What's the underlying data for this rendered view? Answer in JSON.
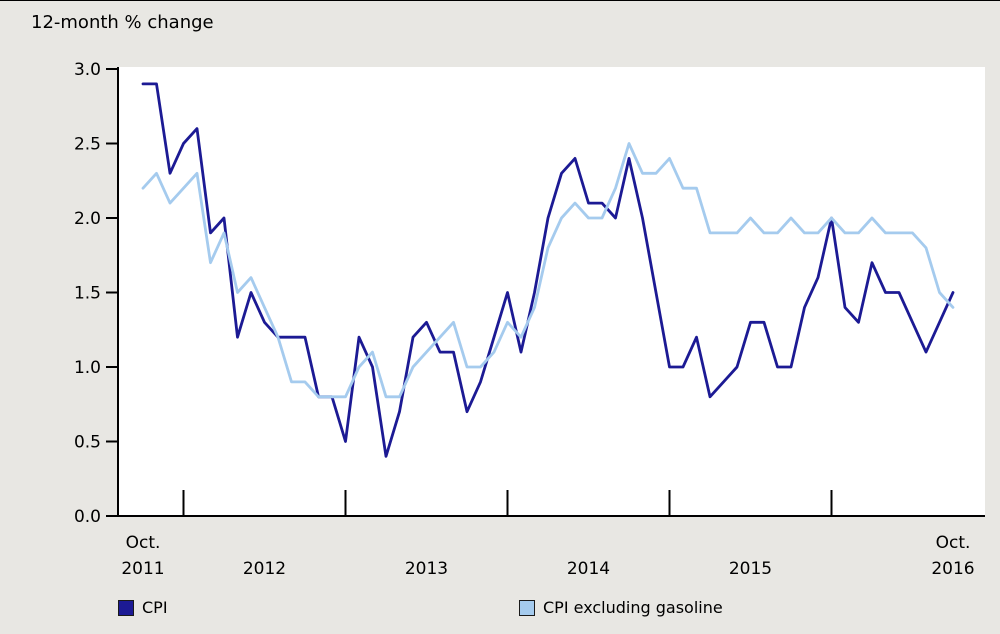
{
  "colors": {
    "background": "#e8e7e3",
    "plot_bg": "#ffffff",
    "axis": "#000000",
    "cpi": "#1c1a94",
    "cpi_ex": "#a5cbee"
  },
  "legend": [
    {
      "label": "CPI",
      "color_key": "cpi"
    },
    {
      "label": "CPI excluding gasoline",
      "color_key": "cpi_ex"
    }
  ],
  "chart_data": {
    "type": "line",
    "title": "12-month % change",
    "xlabel": "",
    "ylabel": "12-month % change",
    "ylim": [
      0.0,
      3.0
    ],
    "yticks": [
      0.0,
      0.5,
      1.0,
      1.5,
      2.0,
      2.5,
      3.0
    ],
    "grid": "off",
    "legend_position": "bottom",
    "x_unit": "month",
    "x_range": "Oct. 2011 to Oct. 2016",
    "x_axis": {
      "start_label": [
        "Oct.",
        "2011"
      ],
      "end_label": [
        "Oct.",
        "2016"
      ],
      "mid_year_labels": [
        "2012",
        "2013",
        "2014",
        "2015"
      ],
      "tick_indices": [
        3,
        15,
        27,
        39,
        51
      ],
      "mid_label_indices": [
        9,
        21,
        33,
        45
      ]
    },
    "series": [
      {
        "name": "CPI",
        "color_key": "cpi",
        "values": [
          2.9,
          2.9,
          2.3,
          2.5,
          2.6,
          1.9,
          2.0,
          1.2,
          1.5,
          1.3,
          1.2,
          1.2,
          1.2,
          0.8,
          0.8,
          0.5,
          1.2,
          1.0,
          0.4,
          0.7,
          1.2,
          1.3,
          1.1,
          1.1,
          0.7,
          0.9,
          1.2,
          1.5,
          1.1,
          1.5,
          2.0,
          2.3,
          2.4,
          2.1,
          2.1,
          2.0,
          2.4,
          2.0,
          1.5,
          1.0,
          1.0,
          1.2,
          0.8,
          0.9,
          1.0,
          1.3,
          1.3,
          1.0,
          1.0,
          1.4,
          1.6,
          2.0,
          1.4,
          1.3,
          1.7,
          1.5,
          1.5,
          1.3,
          1.1,
          1.3,
          1.5
        ]
      },
      {
        "name": "CPI excluding gasoline",
        "color_key": "cpi_ex",
        "values": [
          2.2,
          2.3,
          2.1,
          2.2,
          2.3,
          1.7,
          1.9,
          1.5,
          1.6,
          1.4,
          1.2,
          0.9,
          0.9,
          0.8,
          0.8,
          0.8,
          1.0,
          1.1,
          0.8,
          0.8,
          1.0,
          1.1,
          1.2,
          1.3,
          1.0,
          1.0,
          1.1,
          1.3,
          1.2,
          1.4,
          1.8,
          2.0,
          2.1,
          2.0,
          2.0,
          2.2,
          2.5,
          2.3,
          2.3,
          2.4,
          2.2,
          2.2,
          1.9,
          1.9,
          1.9,
          2.0,
          1.9,
          1.9,
          2.0,
          1.9,
          1.9,
          2.0,
          1.9,
          1.9,
          2.0,
          1.9,
          1.9,
          1.9,
          1.8,
          1.5,
          1.4
        ]
      }
    ]
  }
}
